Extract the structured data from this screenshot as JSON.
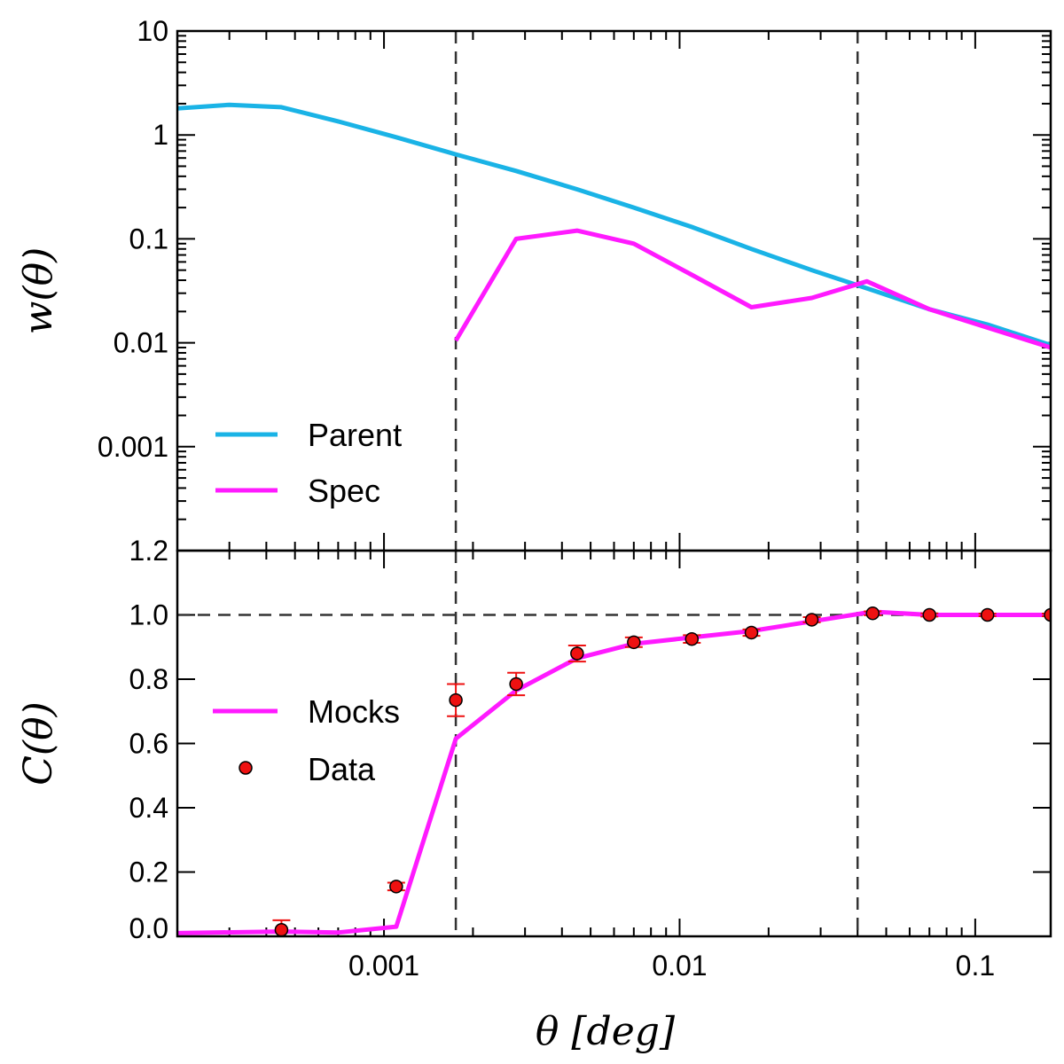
{
  "chart_data": [
    {
      "type": "line",
      "ylabel": "w(θ)",
      "xscale": "log",
      "yscale": "log",
      "xlim": [
        0.0002,
        0.18
      ],
      "ylim": [
        0.0001,
        10
      ],
      "ytick_labels": [
        {
          "value": 10,
          "label": "10"
        },
        {
          "value": 1,
          "label": "1"
        },
        {
          "value": 0.1,
          "label": "0.1"
        },
        {
          "value": 0.01,
          "label": "0.01"
        },
        {
          "value": 0.001,
          "label": "0.001"
        }
      ],
      "vlines": [
        0.00175,
        0.04
      ],
      "legend_position": "lower-left",
      "series": [
        {
          "name": "Parent",
          "color": "#1ab3e6",
          "x": [
            0.0002,
            0.0003,
            0.00045,
            0.0007,
            0.0011,
            0.00175,
            0.0028,
            0.0045,
            0.007,
            0.011,
            0.0175,
            0.028,
            0.045,
            0.07,
            0.11,
            0.18
          ],
          "y": [
            1.8,
            1.95,
            1.85,
            1.35,
            0.95,
            0.65,
            0.45,
            0.3,
            0.2,
            0.13,
            0.08,
            0.05,
            0.032,
            0.021,
            0.015,
            0.0095
          ]
        },
        {
          "name": "Spec",
          "color": "#ff1aff",
          "x": [
            0.00175,
            0.0028,
            0.0045,
            0.007,
            0.011,
            0.0175,
            0.028,
            0.043,
            0.07,
            0.11,
            0.18
          ],
          "y": [
            0.0105,
            0.1,
            0.12,
            0.09,
            0.045,
            0.022,
            0.027,
            0.039,
            0.021,
            0.014,
            0.009
          ]
        }
      ]
    },
    {
      "type": "line",
      "xlabel": "θ [deg]",
      "ylabel": "C(θ)",
      "xscale": "log",
      "xlim": [
        0.0002,
        0.18
      ],
      "ylim": [
        0,
        1.2
      ],
      "ytick_labels": [
        {
          "value": 0.0,
          "label": "0.0"
        },
        {
          "value": 0.2,
          "label": "0.2"
        },
        {
          "value": 0.4,
          "label": "0.4"
        },
        {
          "value": 0.6,
          "label": "0.6"
        },
        {
          "value": 0.8,
          "label": "0.8"
        },
        {
          "value": 1.0,
          "label": "1.0"
        },
        {
          "value": 1.2,
          "label": "1.2"
        }
      ],
      "xtick_labels": [
        {
          "value": 0.001,
          "label": "0.001"
        },
        {
          "value": 0.01,
          "label": "0.01"
        },
        {
          "value": 0.1,
          "label": "0.1"
        }
      ],
      "hline": 1.0,
      "vlines": [
        0.00175,
        0.04
      ],
      "legend_position": "center-left",
      "series": [
        {
          "name": "Mocks",
          "color": "#ff1aff",
          "x": [
            0.0002,
            0.00045,
            0.0007,
            0.0011,
            0.00175,
            0.0028,
            0.0045,
            0.007,
            0.011,
            0.0175,
            0.028,
            0.045,
            0.07,
            0.11,
            0.18
          ],
          "y": [
            0.01,
            0.015,
            0.012,
            0.03,
            0.615,
            0.765,
            0.865,
            0.91,
            0.93,
            0.95,
            0.98,
            1.01,
            1.0,
            1.0,
            1.0
          ]
        },
        {
          "name": "Data",
          "color": "#ee1111",
          "marker": "circle",
          "x": [
            0.00045,
            0.0011,
            0.00175,
            0.0028,
            0.0045,
            0.007,
            0.011,
            0.0175,
            0.028,
            0.045,
            0.07,
            0.11,
            0.18
          ],
          "y": [
            0.02,
            0.155,
            0.735,
            0.785,
            0.88,
            0.915,
            0.925,
            0.945,
            0.985,
            1.005,
            1.0,
            1.0,
            1.0
          ],
          "yerr": [
            0.03,
            0.012,
            0.05,
            0.035,
            0.025,
            0.015,
            0.012,
            0.01,
            0.008,
            0.006,
            0.005,
            0.004,
            0.004
          ]
        }
      ]
    }
  ]
}
